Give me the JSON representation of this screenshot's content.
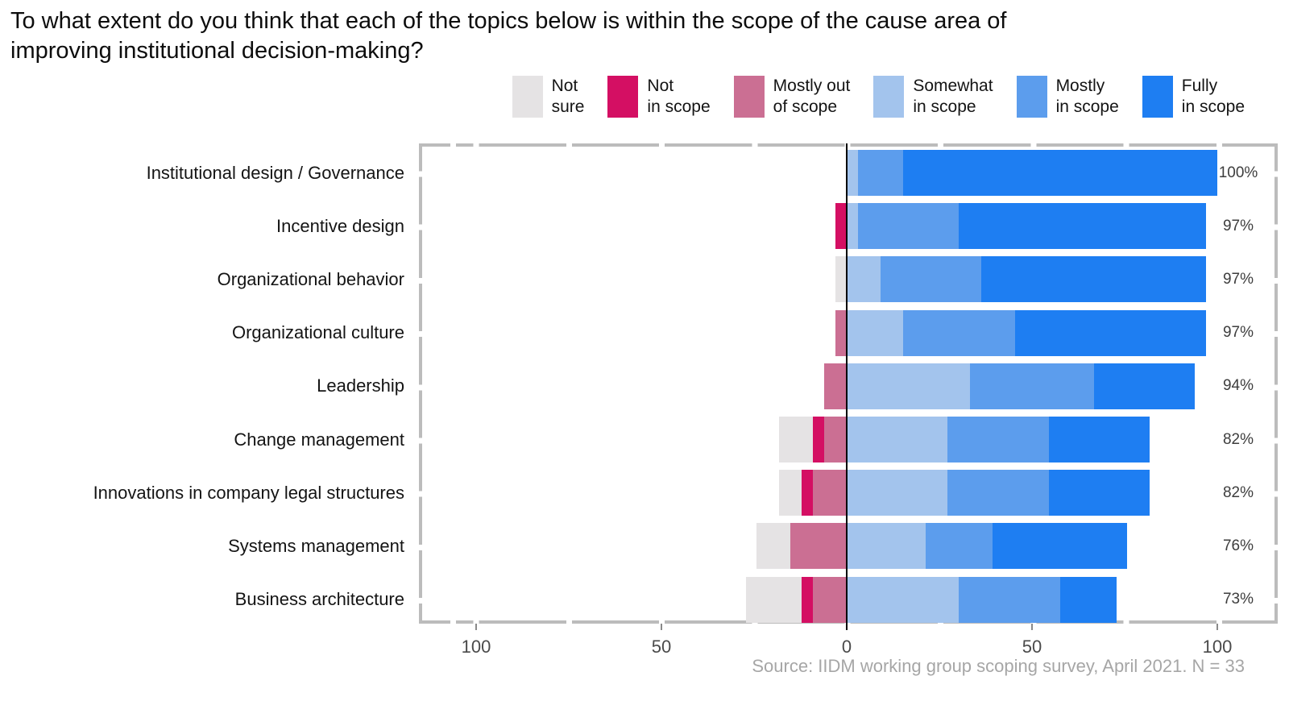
{
  "title_lines": [
    "To what extent do you think that each of the topics below is within the scope of the cause area of",
    "improving institutional decision-making?"
  ],
  "source": "Source: IIDM working group scoping survey, April 2021. N = 33",
  "colors": {
    "not_sure": "#e5e3e4",
    "not_in_scope": "#d40f63",
    "mostly_out_of_scope": "#cb6f93",
    "somewhat_in_scope": "#a3c4ed",
    "mostly_in_scope": "#5c9ded",
    "fully_in_scope": "#1e7ef2",
    "zero_line": "#000000",
    "panel_border": "#bcbcbc",
    "axis_text": "#4a4a4a",
    "source_text": "#a6a6a6"
  },
  "legend": {
    "items": [
      {
        "key": "not_sure",
        "lines": [
          "Not",
          "sure"
        ]
      },
      {
        "key": "not_in_scope",
        "lines": [
          "Not",
          "in scope"
        ]
      },
      {
        "key": "mostly_out_of_scope",
        "lines": [
          "Mostly out",
          "of scope"
        ]
      },
      {
        "key": "somewhat_in_scope",
        "lines": [
          "Somewhat",
          "in scope"
        ]
      },
      {
        "key": "mostly_in_scope",
        "lines": [
          "Mostly",
          "in scope"
        ]
      },
      {
        "key": "fully_in_scope",
        "lines": [
          "Fully",
          "in scope"
        ]
      }
    ]
  },
  "chart_data": {
    "type": "bar",
    "variant": "diverging-stacked-horizontal",
    "title": "To what extent do you think that each of the topics below is within the scope of the cause area of improving institutional decision-making?",
    "categories": [
      "Institutional design / Governance",
      "Incentive design",
      "Organizational behavior",
      "Organizational culture",
      "Leadership",
      "Change management",
      "Innovations in company legal structures",
      "Systems management",
      "Business architecture"
    ],
    "series": [
      {
        "name": "Not sure",
        "key": "not_sure",
        "side": "left",
        "values": [
          0,
          0,
          3.03,
          0,
          0,
          9.09,
          6.06,
          9.09,
          15.15
        ]
      },
      {
        "name": "Not in scope",
        "key": "not_in_scope",
        "side": "left",
        "values": [
          0,
          3.03,
          0,
          0,
          0,
          3.03,
          3.03,
          0,
          3.03
        ]
      },
      {
        "name": "Mostly out of scope",
        "key": "mostly_out_of_scope",
        "side": "left",
        "values": [
          0,
          0,
          0,
          3.03,
          6.06,
          6.06,
          9.09,
          15.15,
          9.09
        ]
      },
      {
        "name": "Somewhat in scope",
        "key": "somewhat_in_scope",
        "side": "right",
        "values": [
          3.03,
          3.03,
          9.09,
          15.15,
          33.33,
          27.27,
          27.27,
          21.21,
          30.3
        ]
      },
      {
        "name": "Mostly in scope",
        "key": "mostly_in_scope",
        "side": "right",
        "values": [
          12.12,
          27.27,
          27.27,
          30.3,
          33.33,
          27.27,
          27.27,
          18.18,
          27.27
        ]
      },
      {
        "name": "Fully in scope",
        "key": "fully_in_scope",
        "side": "right",
        "values": [
          84.85,
          66.67,
          60.61,
          51.52,
          27.27,
          27.27,
          27.27,
          36.36,
          15.15
        ]
      }
    ],
    "totals_in_scope_labels": [
      "100%",
      "97%",
      "97%",
      "97%",
      "94%",
      "82%",
      "82%",
      "76%",
      "73%"
    ],
    "x_axis": {
      "ticks": [
        {
          "label": "100",
          "value": -100
        },
        {
          "label": "50",
          "value": -50
        },
        {
          "label": "0",
          "value": 0
        },
        {
          "label": "50",
          "value": 50
        },
        {
          "label": "100",
          "value": 100
        }
      ],
      "unit": "percent of respondents",
      "gridlines_every": 25
    },
    "n": 33,
    "legend_position": "top"
  }
}
